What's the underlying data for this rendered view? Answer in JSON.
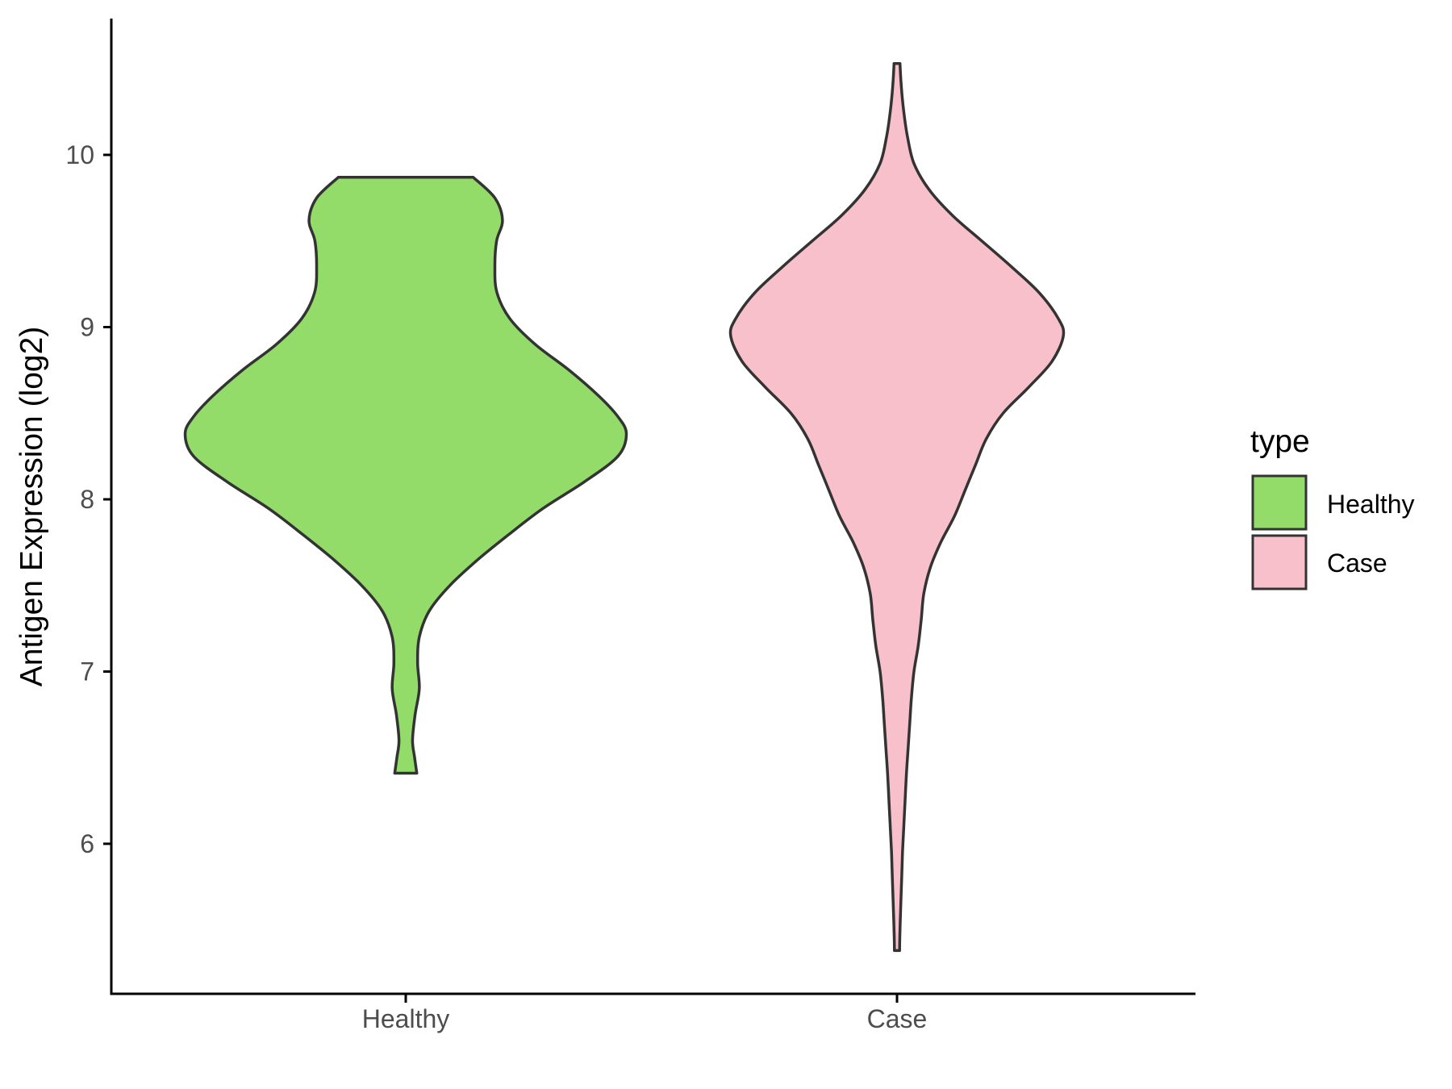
{
  "chart_data": {
    "type": "violin",
    "title": "",
    "xlabel": "",
    "ylabel": "Antigen Expression (log2)",
    "categories": [
      "Healthy",
      "Case"
    ],
    "yticks": [
      6,
      7,
      8,
      9,
      10
    ],
    "ylim": [
      5.1,
      10.75
    ],
    "legend": {
      "title": "type",
      "position": "right",
      "items": [
        {
          "label": "Healthy",
          "color": "#93DC6A"
        },
        {
          "label": "Case",
          "color": "#F7C0CB"
        }
      ]
    },
    "series": [
      {
        "name": "Healthy",
        "color": "#93DC6A",
        "min": 6.41,
        "max": 9.87,
        "profile": [
          [
            9.87,
            0.159
          ],
          [
            9.75,
            0.21
          ],
          [
            9.62,
            0.228
          ],
          [
            9.5,
            0.214
          ],
          [
            9.35,
            0.21
          ],
          [
            9.2,
            0.215
          ],
          [
            9.05,
            0.245
          ],
          [
            8.9,
            0.305
          ],
          [
            8.75,
            0.385
          ],
          [
            8.6,
            0.455
          ],
          [
            8.48,
            0.5
          ],
          [
            8.38,
            0.52
          ],
          [
            8.25,
            0.5
          ],
          [
            8.1,
            0.42
          ],
          [
            7.95,
            0.325
          ],
          [
            7.8,
            0.245
          ],
          [
            7.65,
            0.17
          ],
          [
            7.5,
            0.104
          ],
          [
            7.35,
            0.055
          ],
          [
            7.2,
            0.032
          ],
          [
            7.05,
            0.028
          ],
          [
            6.9,
            0.032
          ],
          [
            6.75,
            0.022
          ],
          [
            6.6,
            0.016
          ],
          [
            6.5,
            0.021
          ],
          [
            6.41,
            0.026
          ]
        ]
      },
      {
        "name": "Case",
        "color": "#F7C0CB",
        "min": 5.38,
        "max": 10.53,
        "profile": [
          [
            10.53,
            0.007
          ],
          [
            10.4,
            0.01
          ],
          [
            10.25,
            0.016
          ],
          [
            10.1,
            0.025
          ],
          [
            9.95,
            0.04
          ],
          [
            9.8,
            0.075
          ],
          [
            9.65,
            0.13
          ],
          [
            9.5,
            0.2
          ],
          [
            9.35,
            0.27
          ],
          [
            9.2,
            0.335
          ],
          [
            9.05,
            0.38
          ],
          [
            8.95,
            0.392
          ],
          [
            8.8,
            0.365
          ],
          [
            8.65,
            0.31
          ],
          [
            8.5,
            0.25
          ],
          [
            8.35,
            0.21
          ],
          [
            8.2,
            0.185
          ],
          [
            8.05,
            0.16
          ],
          [
            7.9,
            0.135
          ],
          [
            7.75,
            0.103
          ],
          [
            7.6,
            0.078
          ],
          [
            7.45,
            0.063
          ],
          [
            7.3,
            0.057
          ],
          [
            7.15,
            0.05
          ],
          [
            7.0,
            0.04
          ],
          [
            6.85,
            0.034
          ],
          [
            6.7,
            0.03
          ],
          [
            6.55,
            0.026
          ],
          [
            6.4,
            0.022
          ],
          [
            6.25,
            0.019
          ],
          [
            6.1,
            0.016
          ],
          [
            5.95,
            0.013
          ],
          [
            5.8,
            0.011
          ],
          [
            5.65,
            0.009
          ],
          [
            5.5,
            0.007
          ],
          [
            5.38,
            0.006
          ]
        ]
      }
    ],
    "grid": false
  }
}
